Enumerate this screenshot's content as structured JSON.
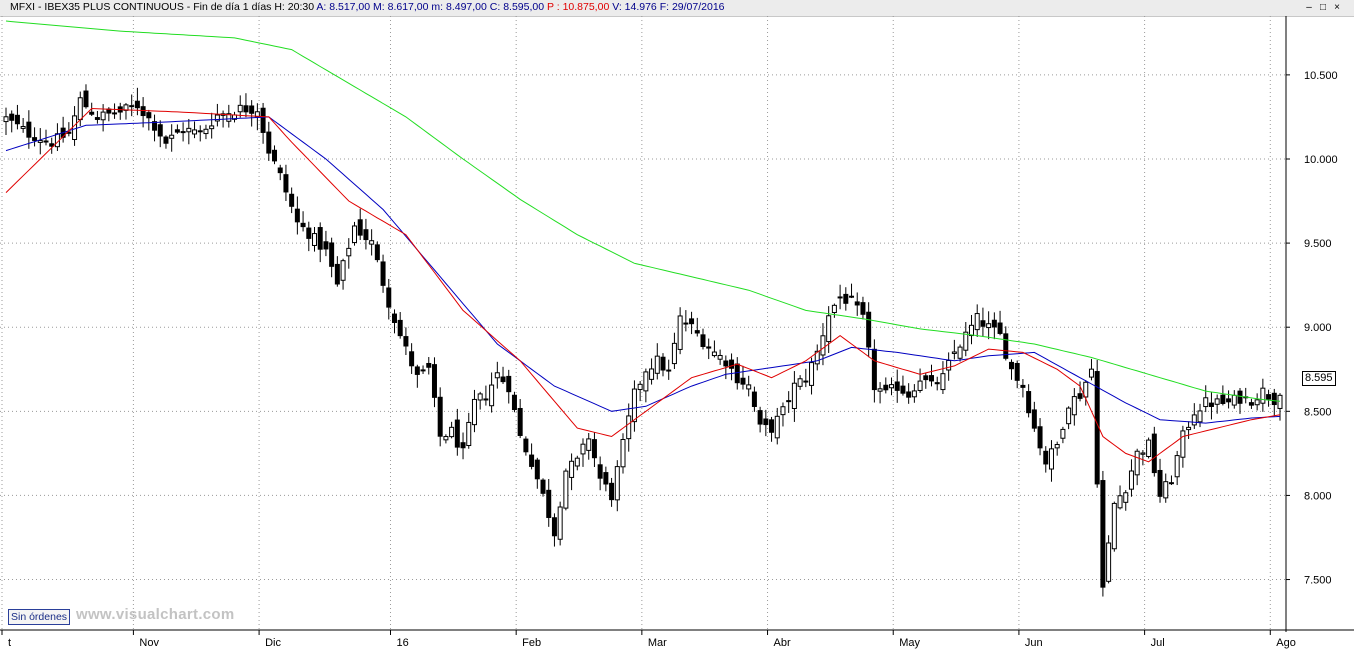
{
  "header": {
    "prefix": "MFXI - IBEX35 PLUS CONTINUOUS - Fin de día 1 días",
    "h": "H: 20:30",
    "a": "A: 8.517,00",
    "m": "M: 8.617,00",
    "mn": "m: 8.497,00",
    "c": "C: 8.595,00",
    "p": "P : 10.875,00",
    "v": "V: 14.976",
    "f": "F: 29/07/2016",
    "colors": {
      "default": "#000000",
      "blue": "#00008b",
      "red": "#e00000"
    }
  },
  "window_buttons": {
    "minimize": "–",
    "maximize": "□",
    "close": "×"
  },
  "orders_button": "Sin órdenes",
  "watermark": "www.visualchart.com",
  "current_price_label": "8.595",
  "chart_data": {
    "type": "candlestick",
    "y_ticks": [
      {
        "value": 7500,
        "label": "7.500"
      },
      {
        "value": 8000,
        "label": "8.000"
      },
      {
        "value": 8500,
        "label": "8.500"
      },
      {
        "value": 9000,
        "label": "9.000"
      },
      {
        "value": 9500,
        "label": "9.500"
      },
      {
        "value": 10000,
        "label": "10.000"
      },
      {
        "value": 10500,
        "label": "10.500"
      }
    ],
    "y_range": [
      7200,
      10850
    ],
    "x_ticks": [
      {
        "index": 0,
        "label": "t"
      },
      {
        "index": 23,
        "label": "Nov"
      },
      {
        "index": 45,
        "label": "Dic"
      },
      {
        "index": 68,
        "label": "16"
      },
      {
        "index": 90,
        "label": "Feb"
      },
      {
        "index": 112,
        "label": "Mar"
      },
      {
        "index": 134,
        "label": "Abr"
      },
      {
        "index": 156,
        "label": "May"
      },
      {
        "index": 178,
        "label": "Jun"
      },
      {
        "index": 200,
        "label": "Jul"
      },
      {
        "index": 222,
        "label": "Ago"
      }
    ],
    "n_bars": 224,
    "anchors_close": [
      [
        0,
        10240
      ],
      [
        4,
        10150
      ],
      [
        8,
        10100
      ],
      [
        11,
        10150
      ],
      [
        13,
        10350
      ],
      [
        16,
        10250
      ],
      [
        20,
        10280
      ],
      [
        23,
        10320
      ],
      [
        26,
        10200
      ],
      [
        28,
        10100
      ],
      [
        31,
        10180
      ],
      [
        34,
        10150
      ],
      [
        37,
        10260
      ],
      [
        41,
        10300
      ],
      [
        44,
        10300
      ],
      [
        46,
        10050
      ],
      [
        48,
        9900
      ],
      [
        51,
        9620
      ],
      [
        53,
        9560
      ],
      [
        56,
        9450
      ],
      [
        58,
        9250
      ],
      [
        61,
        9600
      ],
      [
        64,
        9500
      ],
      [
        67,
        9150
      ],
      [
        69,
        8950
      ],
      [
        72,
        8700
      ],
      [
        74,
        8750
      ],
      [
        76,
        8350
      ],
      [
        78,
        8380
      ],
      [
        80,
        8250
      ],
      [
        82,
        8550
      ],
      [
        84,
        8600
      ],
      [
        86,
        8720
      ],
      [
        88,
        8650
      ],
      [
        90,
        8350
      ],
      [
        92,
        8200
      ],
      [
        94,
        8000
      ],
      [
        96,
        7780
      ],
      [
        98,
        8150
      ],
      [
        100,
        8200
      ],
      [
        102,
        8350
      ],
      [
        104,
        8100
      ],
      [
        106,
        8000
      ],
      [
        108,
        8300
      ],
      [
        110,
        8600
      ],
      [
        112,
        8750
      ],
      [
        114,
        8800
      ],
      [
        116,
        8730
      ],
      [
        118,
        9050
      ],
      [
        120,
        9000
      ],
      [
        122,
        8920
      ],
      [
        124,
        8850
      ],
      [
        126,
        8800
      ],
      [
        128,
        8700
      ],
      [
        130,
        8650
      ],
      [
        132,
        8400
      ],
      [
        134,
        8400
      ],
      [
        136,
        8500
      ],
      [
        138,
        8650
      ],
      [
        140,
        8700
      ],
      [
        142,
        8850
      ],
      [
        144,
        9080
      ],
      [
        146,
        9180
      ],
      [
        148,
        9150
      ],
      [
        150,
        9050
      ],
      [
        152,
        8650
      ],
      [
        154,
        8600
      ],
      [
        156,
        8650
      ],
      [
        158,
        8600
      ],
      [
        160,
        8700
      ],
      [
        162,
        8650
      ],
      [
        164,
        8700
      ],
      [
        166,
        8850
      ],
      [
        168,
        8950
      ],
      [
        170,
        9050
      ],
      [
        172,
        9000
      ],
      [
        174,
        8950
      ],
      [
        176,
        8750
      ],
      [
        178,
        8650
      ],
      [
        180,
        8400
      ],
      [
        182,
        8200
      ],
      [
        184,
        8300
      ],
      [
        186,
        8550
      ],
      [
        188,
        8600
      ],
      [
        190,
        8750
      ],
      [
        192,
        7450
      ],
      [
        194,
        7950
      ],
      [
        196,
        8050
      ],
      [
        198,
        8250
      ],
      [
        200,
        8300
      ],
      [
        202,
        8000
      ],
      [
        204,
        8100
      ],
      [
        206,
        8350
      ],
      [
        208,
        8500
      ],
      [
        210,
        8550
      ],
      [
        212,
        8550
      ],
      [
        214,
        8550
      ],
      [
        216,
        8580
      ],
      [
        218,
        8570
      ],
      [
        220,
        8620
      ],
      [
        222,
        8570
      ],
      [
        223,
        8595
      ]
    ],
    "sma20_anchors": [
      [
        0,
        9800
      ],
      [
        15,
        10300
      ],
      [
        30,
        10280
      ],
      [
        46,
        10250
      ],
      [
        50,
        10100
      ],
      [
        60,
        9750
      ],
      [
        70,
        9550
      ],
      [
        80,
        9100
      ],
      [
        90,
        8800
      ],
      [
        100,
        8400
      ],
      [
        106,
        8350
      ],
      [
        112,
        8500
      ],
      [
        120,
        8700
      ],
      [
        128,
        8780
      ],
      [
        134,
        8700
      ],
      [
        140,
        8800
      ],
      [
        146,
        8950
      ],
      [
        152,
        8800
      ],
      [
        160,
        8720
      ],
      [
        166,
        8770
      ],
      [
        172,
        8870
      ],
      [
        178,
        8850
      ],
      [
        184,
        8750
      ],
      [
        188,
        8650
      ],
      [
        192,
        8350
      ],
      [
        196,
        8250
      ],
      [
        200,
        8200
      ],
      [
        206,
        8350
      ],
      [
        212,
        8400
      ],
      [
        218,
        8450
      ],
      [
        223,
        8480
      ]
    ],
    "sma50_anchors": [
      [
        0,
        10050
      ],
      [
        14,
        10200
      ],
      [
        28,
        10220
      ],
      [
        46,
        10250
      ],
      [
        56,
        10000
      ],
      [
        66,
        9700
      ],
      [
        76,
        9300
      ],
      [
        86,
        8900
      ],
      [
        96,
        8650
      ],
      [
        106,
        8500
      ],
      [
        112,
        8530
      ],
      [
        120,
        8650
      ],
      [
        126,
        8720
      ],
      [
        134,
        8760
      ],
      [
        142,
        8800
      ],
      [
        148,
        8880
      ],
      [
        156,
        8850
      ],
      [
        166,
        8800
      ],
      [
        172,
        8830
      ],
      [
        180,
        8850
      ],
      [
        188,
        8700
      ],
      [
        196,
        8550
      ],
      [
        202,
        8450
      ],
      [
        210,
        8430
      ],
      [
        218,
        8460
      ],
      [
        223,
        8470
      ]
    ],
    "sma200_anchors": [
      [
        0,
        10820
      ],
      [
        20,
        10760
      ],
      [
        40,
        10720
      ],
      [
        50,
        10650
      ],
      [
        60,
        10450
      ],
      [
        70,
        10250
      ],
      [
        80,
        10000
      ],
      [
        90,
        9760
      ],
      [
        100,
        9550
      ],
      [
        110,
        9380
      ],
      [
        120,
        9300
      ],
      [
        130,
        9220
      ],
      [
        140,
        9100
      ],
      [
        150,
        9050
      ],
      [
        160,
        8990
      ],
      [
        170,
        8950
      ],
      [
        180,
        8900
      ],
      [
        190,
        8820
      ],
      [
        200,
        8720
      ],
      [
        210,
        8620
      ],
      [
        220,
        8570
      ],
      [
        223,
        8560
      ]
    ]
  },
  "colors": {
    "background": "#ffffff",
    "grid": "#9a9a9a",
    "candle_outline": "#000000",
    "candle_down": "#000000",
    "candle_up": "#ffffff",
    "sma_red": "#e00000",
    "sma_blue": "#0000c0",
    "sma_green": "#22dd22"
  }
}
